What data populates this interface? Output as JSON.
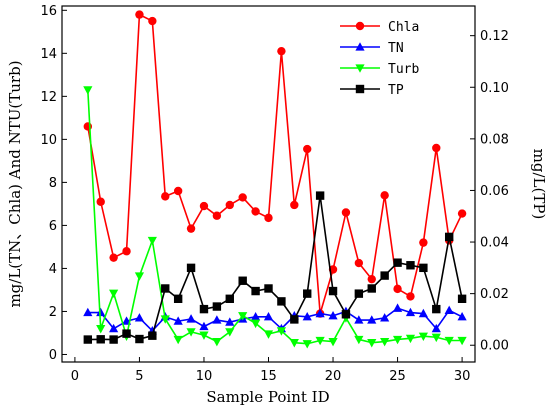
{
  "chart_data": {
    "type": "line",
    "title": "",
    "xlabel": "Sample Point ID",
    "ylabel_left": "mg/L(TN、Chla) And NTU(Turb)",
    "ylabel_right": "mg/L(TP)",
    "xlim": [
      -1,
      31
    ],
    "ylim_left": [
      -0.35,
      16.2
    ],
    "ylim_right": [
      -0.0065,
      0.1315
    ],
    "x_ticks": [
      0,
      5,
      10,
      15,
      20,
      25,
      30
    ],
    "y_left_ticks": [
      0,
      2,
      4,
      6,
      8,
      10,
      12,
      14,
      16
    ],
    "y_right_ticks": [
      0.0,
      0.02,
      0.04,
      0.06,
      0.08,
      0.1,
      0.12
    ],
    "x_tick_labels": [
      "0",
      "5",
      "10",
      "15",
      "20",
      "25",
      "30"
    ],
    "y_left_tick_labels": [
      "0",
      "2",
      "4",
      "6",
      "8",
      "10",
      "12",
      "14",
      "16"
    ],
    "y_right_tick_labels": [
      "0.00",
      "0.02",
      "0.04",
      "0.06",
      "0.08",
      "0.10",
      "0.12"
    ],
    "grid": false,
    "legend_position": "top-right",
    "x": [
      1,
      2,
      3,
      4,
      5,
      6,
      7,
      8,
      9,
      10,
      11,
      12,
      13,
      14,
      15,
      16,
      17,
      18,
      19,
      20,
      21,
      22,
      23,
      24,
      25,
      26,
      27,
      28,
      29,
      30
    ],
    "series": [
      {
        "name": "Chla",
        "axis": "left",
        "color": "#ff0000",
        "marker": "circle",
        "values": [
          10.6,
          7.1,
          4.5,
          4.8,
          15.8,
          15.5,
          7.35,
          7.6,
          5.85,
          6.9,
          6.45,
          6.95,
          7.3,
          6.65,
          6.35,
          14.1,
          6.95,
          9.55,
          1.9,
          3.95,
          6.6,
          4.25,
          3.5,
          7.4,
          3.05,
          2.7,
          5.2,
          9.6,
          5.3,
          6.55
        ]
      },
      {
        "name": "TN",
        "axis": "left",
        "color": "#0000ff",
        "marker": "triangle-up",
        "values": [
          1.95,
          1.95,
          1.2,
          1.55,
          1.7,
          1.1,
          1.75,
          1.55,
          1.65,
          1.3,
          1.6,
          1.5,
          1.65,
          1.75,
          1.75,
          1.2,
          1.8,
          1.75,
          1.9,
          1.8,
          2.0,
          1.6,
          1.6,
          1.7,
          2.15,
          1.95,
          1.9,
          1.2,
          2.05,
          1.75
        ]
      },
      {
        "name": "Turb",
        "axis": "left",
        "color": "#00ff00",
        "marker": "triangle-down",
        "values": [
          12.3,
          1.2,
          2.85,
          0.85,
          3.65,
          5.3,
          1.65,
          0.7,
          1.05,
          0.9,
          0.6,
          1.05,
          1.8,
          1.45,
          0.95,
          1.1,
          0.55,
          0.5,
          0.65,
          0.6,
          1.7,
          0.7,
          0.55,
          0.6,
          0.7,
          0.75,
          0.85,
          0.8,
          0.65,
          0.65
        ]
      },
      {
        "name": "TP",
        "axis": "right",
        "color": "#000000",
        "marker": "square",
        "values": [
          0.0022,
          0.0023,
          0.0022,
          0.0045,
          0.0024,
          0.0037,
          0.022,
          0.018,
          0.03,
          0.014,
          0.015,
          0.018,
          0.025,
          0.021,
          0.022,
          0.017,
          0.01,
          0.02,
          0.058,
          0.021,
          0.012,
          0.02,
          0.022,
          0.027,
          0.032,
          0.031,
          0.03,
          0.014,
          0.042,
          0.018
        ]
      }
    ]
  }
}
